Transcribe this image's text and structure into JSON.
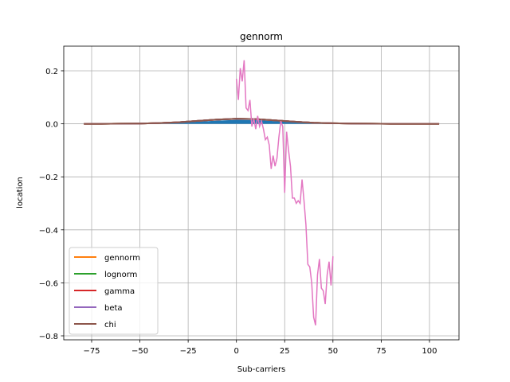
{
  "chart_data": {
    "type": "line",
    "title": "gennorm",
    "x_label": "Sub-carriers",
    "y_label": "location",
    "xlim": [
      -89.45,
      115.3
    ],
    "ylim": [
      -0.815,
      0.293
    ],
    "xticks": [
      {
        "value": -75,
        "label": "−75"
      },
      {
        "value": -50,
        "label": "−50"
      },
      {
        "value": -25,
        "label": "−25"
      },
      0,
      25,
      50,
      75,
      100
    ],
    "yticks": [
      {
        "value": -0.8,
        "label": "−0.8"
      },
      {
        "value": -0.6,
        "label": "−0.6"
      },
      {
        "value": -0.4,
        "label": "−0.4"
      },
      {
        "value": -0.2,
        "label": "−0.2"
      },
      {
        "value": 0,
        "label": "0.0"
      },
      0.2
    ],
    "grid": true,
    "legend": "lower left",
    "series": [
      {
        "kind": "area",
        "color": "#1f77b4",
        "x": [
          -79,
          -70,
          -60,
          -50,
          -40,
          -30,
          -20,
          -10,
          0,
          10,
          20,
          30,
          40,
          50,
          60,
          70,
          80,
          90,
          105
        ],
        "values": [
          0,
          0,
          0.0003,
          0.0008,
          0.002,
          0.004,
          0.008,
          0.012,
          0.015,
          0.014,
          0.01,
          0.006,
          0.003,
          0.0015,
          0.0008,
          0.0003,
          0,
          0,
          0
        ]
      },
      {
        "name": "gennorm",
        "color": "#ff7f0e",
        "x": [
          -79,
          -70,
          -60,
          -50,
          -40,
          -30,
          -20,
          -10,
          0,
          10,
          20,
          30,
          40,
          50,
          60,
          70,
          80,
          90,
          105
        ],
        "values": [
          0,
          0,
          0.0005,
          0.001,
          0.003,
          0.006,
          0.011,
          0.016,
          0.019,
          0.018,
          0.013,
          0.008,
          0.004,
          0.002,
          0.001,
          0.0005,
          0,
          0,
          0
        ]
      },
      {
        "name": "lognorm",
        "color": "#2ca02c",
        "x": [
          -79,
          -70,
          -60,
          -50,
          -40,
          -30,
          -20,
          -10,
          0,
          10,
          20,
          30,
          40,
          50,
          60,
          70,
          80,
          90,
          105
        ],
        "values": [
          0,
          0,
          0.0005,
          0.001,
          0.003,
          0.006,
          0.011,
          0.016,
          0.019,
          0.018,
          0.013,
          0.008,
          0.004,
          0.002,
          0.001,
          0.0005,
          0,
          0,
          0
        ]
      },
      {
        "name": "gamma",
        "color": "#d62728",
        "x": [
          -79,
          -70,
          -60,
          -50,
          -40,
          -30,
          -20,
          -10,
          0,
          10,
          20,
          30,
          40,
          50,
          60,
          70,
          80,
          90,
          105
        ],
        "values": [
          0,
          0,
          0.0005,
          0.001,
          0.003,
          0.006,
          0.011,
          0.016,
          0.019,
          0.018,
          0.013,
          0.008,
          0.004,
          0.002,
          0.001,
          0.0005,
          0,
          0,
          0
        ]
      },
      {
        "name": "beta",
        "color": "#9467bd",
        "x": [
          -79,
          -70,
          -60,
          -50,
          -40,
          -30,
          -20,
          -10,
          0,
          10,
          20,
          30,
          40,
          50,
          60,
          70,
          80,
          90,
          105
        ],
        "values": [
          0,
          0,
          0.0005,
          0.001,
          0.003,
          0.006,
          0.011,
          0.016,
          0.019,
          0.018,
          0.013,
          0.008,
          0.004,
          0.002,
          0.001,
          0.0005,
          0,
          0,
          0
        ]
      },
      {
        "name": "chi",
        "color": "#8c564b",
        "x": [
          -79,
          -70,
          -60,
          -50,
          -40,
          -30,
          -20,
          -10,
          0,
          10,
          20,
          30,
          40,
          50,
          60,
          70,
          80,
          90,
          105
        ],
        "values": [
          0,
          0,
          0.0005,
          0.001,
          0.003,
          0.006,
          0.011,
          0.016,
          0.019,
          0.018,
          0.013,
          0.008,
          0.004,
          0.002,
          0.001,
          0.0005,
          0,
          0,
          0
        ]
      },
      {
        "color": "#e377c2",
        "x": [
          0,
          1,
          2,
          3,
          4,
          5,
          6,
          7,
          8,
          9,
          10,
          11,
          12,
          13,
          14,
          15,
          16,
          17,
          18,
          19,
          20,
          21,
          22,
          23,
          24,
          25,
          26,
          27,
          28,
          29,
          30,
          31,
          32,
          33,
          34,
          35,
          36,
          37,
          38,
          39,
          40,
          41,
          42,
          43,
          44,
          45,
          46,
          47,
          48,
          49,
          50
        ],
        "values": [
          0.17,
          0.09,
          0.21,
          0.16,
          0.24,
          0.06,
          0.05,
          0.09,
          -0.01,
          0.02,
          -0.02,
          0.03,
          -0.01,
          0.01,
          -0.02,
          -0.06,
          -0.05,
          -0.08,
          -0.17,
          -0.12,
          -0.16,
          -0.13,
          -0.05,
          0.01,
          -0.01,
          -0.26,
          -0.03,
          -0.1,
          -0.16,
          -0.28,
          -0.28,
          -0.3,
          -0.29,
          -0.3,
          -0.21,
          -0.29,
          -0.38,
          -0.53,
          -0.54,
          -0.6,
          -0.73,
          -0.76,
          -0.57,
          -0.51,
          -0.62,
          -0.63,
          -0.68,
          -0.57,
          -0.52,
          -0.61,
          -0.5
        ]
      }
    ]
  }
}
